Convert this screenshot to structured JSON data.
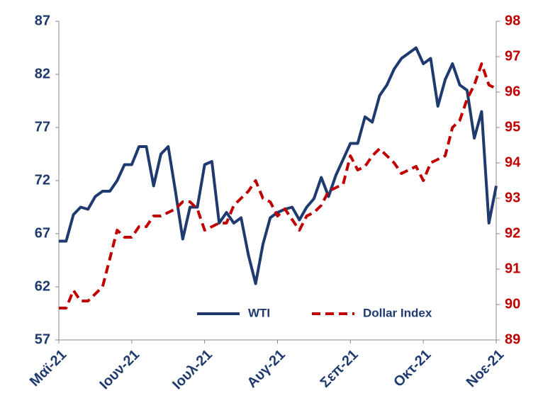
{
  "chart_data": {
    "type": "line",
    "categories": [
      "Μαϊ-21",
      null,
      null,
      null,
      null,
      null,
      null,
      null,
      null,
      null,
      "Ιουν-21",
      null,
      null,
      null,
      null,
      null,
      null,
      null,
      null,
      null,
      "Ιουλ-21",
      null,
      null,
      null,
      null,
      null,
      null,
      null,
      null,
      null,
      "Αυγ-21",
      null,
      null,
      null,
      null,
      null,
      null,
      null,
      null,
      null,
      "Σεπ-21",
      null,
      null,
      null,
      null,
      null,
      null,
      null,
      null,
      null,
      "Οκτ-21",
      null,
      null,
      null,
      null,
      null,
      null,
      null,
      null,
      null,
      "Νοε-21"
    ],
    "series": [
      {
        "name": "WTI",
        "color": "#1f3a6e",
        "axis": "y",
        "values": [
          66.3,
          66.3,
          68.8,
          69.5,
          69.3,
          70.5,
          71,
          71,
          72,
          73.5,
          73.5,
          75.2,
          75.2,
          71.5,
          74.5,
          75.2,
          71,
          66.5,
          69.5,
          69.5,
          73.5,
          73.8,
          68,
          69,
          68,
          68.5,
          65,
          62.3,
          66,
          68.5,
          69,
          69.3,
          69.5,
          68.3,
          69.5,
          70.3,
          72.3,
          70.5,
          72.5,
          74,
          75.5,
          75.5,
          78,
          77.5,
          80,
          81,
          82.5,
          83.5,
          84,
          84.5,
          83,
          83.5,
          79,
          81.5,
          83,
          81,
          80.5,
          76,
          78.5,
          68,
          71.5
        ]
      },
      {
        "name": "Dollar Index",
        "color": "#c00000",
        "axis": "y2",
        "dashed": true,
        "values": [
          89.9,
          89.9,
          90.4,
          90.1,
          90.1,
          90.3,
          90.5,
          91.3,
          92.1,
          91.9,
          91.9,
          92.2,
          92.2,
          92.5,
          92.5,
          92.6,
          92.7,
          92.9,
          92.9,
          92.7,
          92.1,
          92.2,
          92.3,
          92.3,
          92.8,
          93.0,
          93.2,
          93.5,
          93.0,
          92.9,
          92.5,
          92.7,
          92.4,
          92.1,
          92.5,
          92.6,
          92.8,
          93.2,
          93.3,
          93.4,
          94.2,
          93.8,
          93.9,
          94.2,
          94.4,
          94.2,
          94.0,
          93.7,
          93.8,
          93.9,
          93.5,
          94.0,
          94.1,
          94.2,
          95.0,
          95.2,
          95.8,
          96.2,
          96.8,
          96.2,
          96.1
        ]
      }
    ],
    "ylim": [
      57,
      87
    ],
    "yticks": [
      57,
      62,
      67,
      72,
      77,
      82,
      87
    ],
    "ycolor": "#1f3a6e",
    "y2lim": [
      89,
      98
    ],
    "y2ticks": [
      89,
      90,
      91,
      92,
      93,
      94,
      95,
      96,
      97,
      98
    ],
    "y2color": "#c00000",
    "grid": false,
    "legend": "bottom"
  }
}
